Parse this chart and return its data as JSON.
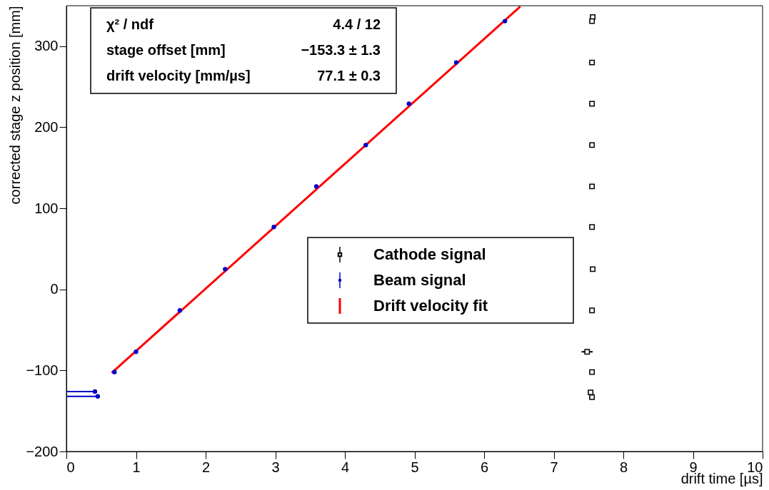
{
  "chart_data": {
    "type": "scatter",
    "xlabel": "drift time [µs]",
    "ylabel": "corrected stage z position [mm]",
    "xlim": [
      0,
      10
    ],
    "ylim": [
      -200,
      350
    ],
    "xticks": [
      0,
      1,
      2,
      3,
      4,
      5,
      6,
      7,
      8,
      9,
      10
    ],
    "yticks": [
      -200,
      -100,
      0,
      100,
      200,
      300
    ],
    "grid": false,
    "legend": "center",
    "annotations": [
      "χ² / ndf",
      "4.4 / 12",
      "stage offset [mm]",
      "−153.3 ± 1.3",
      "drift velocity [mm/µs]",
      "77.1 ± 0.3"
    ],
    "series": [
      {
        "name": "Cathode signal",
        "marker": "square",
        "color": "#000000",
        "x": [
          7.56,
          7.55,
          7.55,
          7.55,
          7.55,
          7.55,
          7.55,
          7.56,
          7.55,
          7.48,
          7.55,
          7.53,
          7.55
        ],
        "values": [
          336,
          331,
          280,
          229,
          178,
          127,
          77,
          25,
          -26,
          -77,
          -102,
          -127,
          -133
        ],
        "xerrors": [
          0.04,
          0.04,
          0.04,
          0.04,
          0.04,
          0.04,
          0.04,
          0.04,
          0.04,
          0.08,
          0.04,
          0.04,
          0.04
        ]
      },
      {
        "name": "Beam signal",
        "marker": "circle",
        "color": "#0000cc",
        "x": [
          0.41,
          0.45,
          0.69,
          1.0,
          1.63,
          2.28,
          2.98,
          3.59,
          4.3,
          4.92,
          5.6,
          6.3
        ],
        "values": [
          -126,
          -132,
          -102,
          -77,
          -26,
          25,
          77,
          127,
          178,
          229,
          280,
          331
        ],
        "xerrors": [
          [
            0,
            0.43
          ],
          [
            0,
            0.48
          ],
          null,
          null,
          null,
          null,
          null,
          null,
          null,
          null,
          null,
          null
        ]
      },
      {
        "name": "Drift velocity fit",
        "type": "line",
        "line_style": "solid",
        "color": "#ff0000",
        "x": [
          0.65,
          6.52
        ],
        "values": [
          -103,
          349
        ]
      }
    ]
  }
}
